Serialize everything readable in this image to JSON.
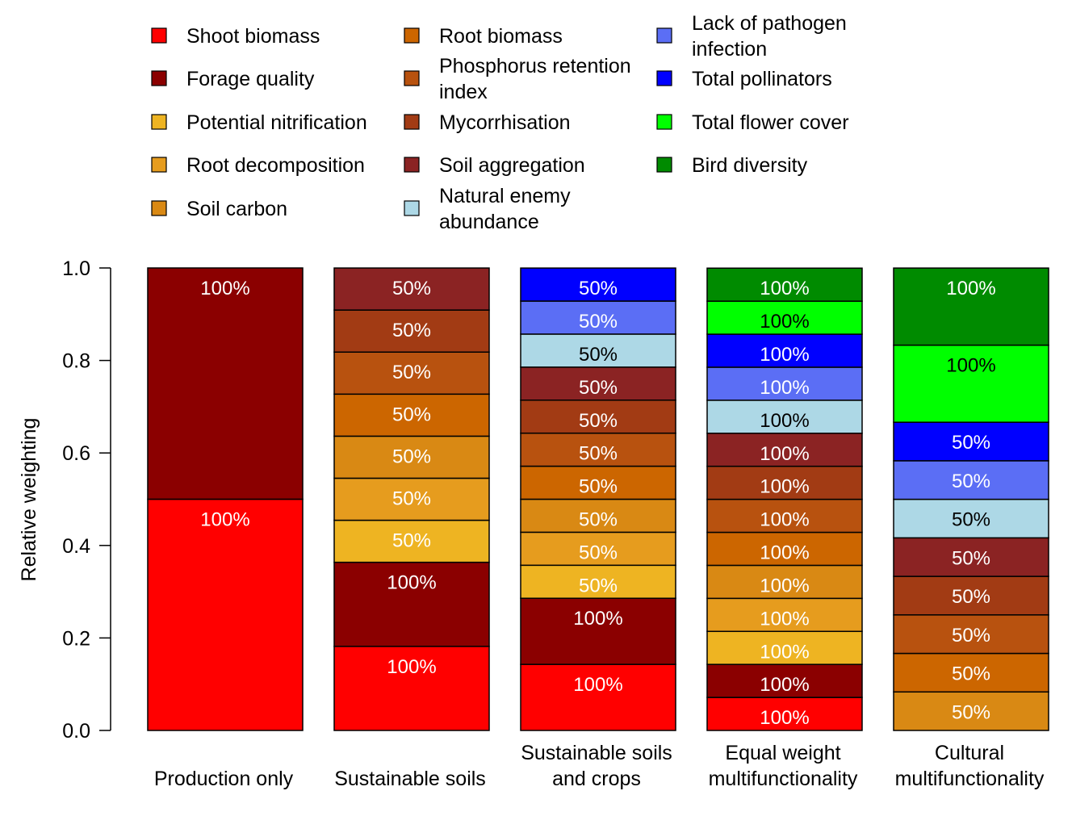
{
  "chart_data": {
    "type": "bar",
    "stacked": true,
    "title": "",
    "xlabel": "",
    "ylabel": "Relative weighting",
    "ylim": [
      0,
      1
    ],
    "yticks": [
      "0.0",
      "0.2",
      "0.4",
      "0.6",
      "0.8",
      "1.0"
    ],
    "legend_position": "top",
    "categories": [
      [
        "Production only"
      ],
      [
        "Sustainable soils"
      ],
      [
        "Sustainable soils",
        "and crops"
      ],
      [
        "Equal weight",
        "multifunctionality"
      ],
      [
        "Cultural",
        "multifunctionality"
      ]
    ],
    "series": [
      {
        "name": "Shoot biomass",
        "lines": [
          "Shoot biomass"
        ],
        "color": "#FF0000"
      },
      {
        "name": "Forage quality",
        "lines": [
          "Forage quality"
        ],
        "color": "#8B0000"
      },
      {
        "name": "Potential nitrification",
        "lines": [
          "Potential nitrification"
        ],
        "color": "#EEB422"
      },
      {
        "name": "Root decomposition",
        "lines": [
          "Root decomposition"
        ],
        "color": "#E69C1E"
      },
      {
        "name": "Soil carbon",
        "lines": [
          "Soil carbon"
        ],
        "color": "#D98914"
      },
      {
        "name": "Root biomass",
        "lines": [
          "Root biomass"
        ],
        "color": "#CC6600"
      },
      {
        "name": "Phosphorus retention index",
        "lines": [
          "Phosphorus retention",
          "index"
        ],
        "color": "#B8520F"
      },
      {
        "name": "Mycorrhisation",
        "lines": [
          "Mycorrhisation"
        ],
        "color": "#A23B14"
      },
      {
        "name": "Soil aggregation",
        "lines": [
          "Soil aggregation"
        ],
        "color": "#8B2323"
      },
      {
        "name": "Natural enemy abundance",
        "lines": [
          "Natural enemy",
          "abundance"
        ],
        "color": "#ADD8E6"
      },
      {
        "name": "Lack of pathogen infection",
        "lines": [
          "Lack of pathogen",
          "infection"
        ],
        "color": "#5B6EF5"
      },
      {
        "name": "Total pollinators",
        "lines": [
          "Total pollinators"
        ],
        "color": "#0000FF"
      },
      {
        "name": "Total flower cover",
        "lines": [
          "Total flower cover"
        ],
        "color": "#00FF00"
      },
      {
        "name": "Bird diversity",
        "lines": [
          "Bird diversity"
        ],
        "color": "#008B00"
      }
    ],
    "bars": [
      {
        "segments": [
          {
            "series": 0,
            "value": 0.5,
            "label": "100%"
          },
          {
            "series": 1,
            "value": 0.5,
            "label": "100%"
          }
        ]
      },
      {
        "segments": [
          {
            "series": 0,
            "value": 0.1818,
            "label": "100%"
          },
          {
            "series": 1,
            "value": 0.1818,
            "label": "100%"
          },
          {
            "series": 2,
            "value": 0.0909,
            "label": "50%"
          },
          {
            "series": 3,
            "value": 0.0909,
            "label": "50%"
          },
          {
            "series": 4,
            "value": 0.0909,
            "label": "50%"
          },
          {
            "series": 5,
            "value": 0.0909,
            "label": "50%"
          },
          {
            "series": 6,
            "value": 0.0909,
            "label": "50%"
          },
          {
            "series": 7,
            "value": 0.0909,
            "label": "50%"
          },
          {
            "series": 8,
            "value": 0.0909,
            "label": "50%"
          }
        ]
      },
      {
        "segments": [
          {
            "series": 0,
            "value": 0.1429,
            "label": "100%"
          },
          {
            "series": 1,
            "value": 0.1429,
            "label": "100%"
          },
          {
            "series": 2,
            "value": 0.0714,
            "label": "50%"
          },
          {
            "series": 3,
            "value": 0.0714,
            "label": "50%"
          },
          {
            "series": 4,
            "value": 0.0714,
            "label": "50%"
          },
          {
            "series": 5,
            "value": 0.0714,
            "label": "50%"
          },
          {
            "series": 6,
            "value": 0.0714,
            "label": "50%"
          },
          {
            "series": 7,
            "value": 0.0714,
            "label": "50%"
          },
          {
            "series": 8,
            "value": 0.0714,
            "label": "50%"
          },
          {
            "series": 9,
            "value": 0.0714,
            "label": "50%"
          },
          {
            "series": 10,
            "value": 0.0714,
            "label": "50%"
          },
          {
            "series": 11,
            "value": 0.0714,
            "label": "50%"
          }
        ]
      },
      {
        "segments": [
          {
            "series": 0,
            "value": 0.0714,
            "label": "100%"
          },
          {
            "series": 1,
            "value": 0.0714,
            "label": "100%"
          },
          {
            "series": 2,
            "value": 0.0714,
            "label": "100%"
          },
          {
            "series": 3,
            "value": 0.0714,
            "label": "100%"
          },
          {
            "series": 4,
            "value": 0.0714,
            "label": "100%"
          },
          {
            "series": 5,
            "value": 0.0714,
            "label": "100%"
          },
          {
            "series": 6,
            "value": 0.0714,
            "label": "100%"
          },
          {
            "series": 7,
            "value": 0.0714,
            "label": "100%"
          },
          {
            "series": 8,
            "value": 0.0714,
            "label": "100%"
          },
          {
            "series": 9,
            "value": 0.0714,
            "label": "100%"
          },
          {
            "series": 10,
            "value": 0.0714,
            "label": "100%"
          },
          {
            "series": 11,
            "value": 0.0714,
            "label": "100%"
          },
          {
            "series": 12,
            "value": 0.0714,
            "label": "100%"
          },
          {
            "series": 13,
            "value": 0.0714,
            "label": "100%"
          }
        ]
      },
      {
        "segments": [
          {
            "series": 4,
            "value": 0.0833,
            "label": "50%"
          },
          {
            "series": 5,
            "value": 0.0833,
            "label": "50%"
          },
          {
            "series": 6,
            "value": 0.0833,
            "label": "50%"
          },
          {
            "series": 7,
            "value": 0.0833,
            "label": "50%"
          },
          {
            "series": 8,
            "value": 0.0833,
            "label": "50%"
          },
          {
            "series": 9,
            "value": 0.0833,
            "label": "50%"
          },
          {
            "series": 10,
            "value": 0.0833,
            "label": "50%"
          },
          {
            "series": 11,
            "value": 0.0833,
            "label": "50%"
          },
          {
            "series": 12,
            "value": 0.1667,
            "label": "100%"
          },
          {
            "series": 13,
            "value": 0.1667,
            "label": "100%"
          }
        ]
      }
    ]
  }
}
